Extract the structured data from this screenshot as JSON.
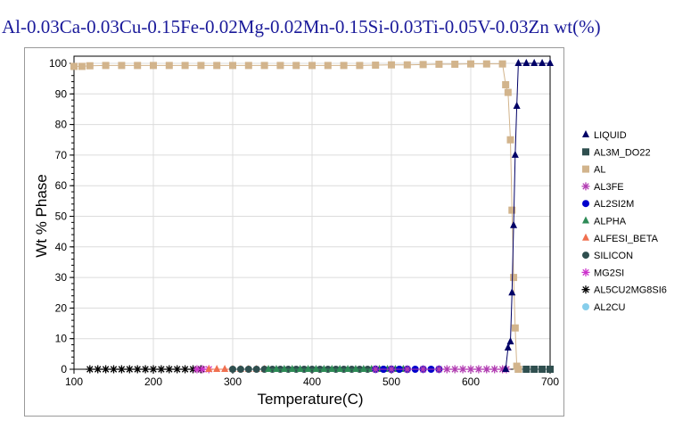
{
  "chart_data": {
    "type": "line",
    "title": "Al-0.03Ca-0.03Cu-0.15Fe-0.02Mg-0.02Mn-0.15Si-0.03Ti-0.05V-0.03Zn wt(%)",
    "xlabel": "Temperature(C)",
    "ylabel": "Wt % Phase",
    "xlim": [
      100,
      700
    ],
    "ylim": [
      0,
      100
    ],
    "xticks": [
      100,
      200,
      300,
      400,
      500,
      600,
      700
    ],
    "yticks": [
      0,
      10,
      20,
      30,
      40,
      50,
      60,
      70,
      80,
      90,
      100
    ],
    "grid": true,
    "legend_position": "right",
    "series": [
      {
        "name": "LIQUID",
        "color": "#000066",
        "marker": "triangle",
        "x": [
          644,
          647,
          650,
          652,
          654,
          656,
          658,
          660,
          670,
          680,
          690,
          700
        ],
        "y": [
          0,
          7,
          9,
          25,
          47,
          70,
          86,
          100,
          100,
          100,
          100,
          100
        ]
      },
      {
        "name": "AL3M_DO22",
        "color": "#2f4f4f",
        "marker": "square",
        "x": [
          660,
          670,
          680,
          690,
          700
        ],
        "y": [
          0,
          0,
          0,
          0,
          0
        ]
      },
      {
        "name": "AL",
        "color": "#d2b48c",
        "marker": "square",
        "x": [
          100,
          110,
          120,
          140,
          160,
          180,
          200,
          220,
          240,
          260,
          280,
          300,
          320,
          340,
          360,
          380,
          400,
          420,
          440,
          460,
          480,
          500,
          520,
          540,
          560,
          580,
          600,
          620,
          640,
          644,
          647,
          650,
          652,
          654,
          656,
          658,
          660
        ],
        "y": [
          99,
          99,
          99.2,
          99.3,
          99.3,
          99.3,
          99.3,
          99.3,
          99.3,
          99.3,
          99.3,
          99.3,
          99.3,
          99.3,
          99.3,
          99.3,
          99.3,
          99.3,
          99.3,
          99.3,
          99.4,
          99.5,
          99.5,
          99.6,
          99.7,
          99.7,
          99.8,
          99.8,
          99.8,
          93,
          90.5,
          75,
          52,
          30,
          13.5,
          1,
          0
        ]
      },
      {
        "name": "AL3FE",
        "color": "#b23cb2",
        "marker": "asterisk",
        "x": [
          480,
          500,
          520,
          540,
          560,
          570,
          580,
          590,
          600,
          610,
          620,
          630,
          640,
          645
        ],
        "y": [
          0,
          0,
          0,
          0,
          0,
          0,
          0,
          0,
          0,
          0,
          0,
          0,
          0,
          0
        ]
      },
      {
        "name": "AL2SI2M",
        "color": "#0000cc",
        "marker": "circle",
        "x": [
          480,
          490,
          500,
          510,
          520,
          530,
          540,
          550,
          560
        ],
        "y": [
          0,
          0,
          0,
          0,
          0,
          0,
          0,
          0,
          0
        ]
      },
      {
        "name": "ALPHA",
        "color": "#2e8b57",
        "marker": "triangle",
        "x": [
          345,
          355,
          365,
          375,
          385,
          395,
          405,
          415,
          425,
          435,
          445,
          455,
          465,
          475,
          485,
          495,
          505,
          515
        ],
        "y": [
          0,
          0,
          0,
          0,
          0,
          0,
          0,
          0,
          0,
          0,
          0,
          0,
          0,
          0,
          0,
          0,
          0,
          0
        ]
      },
      {
        "name": "ALFESI_BETA",
        "color": "#f07050",
        "marker": "triangle",
        "x": [
          270,
          280,
          290,
          300,
          310,
          320,
          330,
          340
        ],
        "y": [
          0,
          0,
          0,
          0,
          0,
          0,
          0,
          0
        ]
      },
      {
        "name": "SILICON",
        "color": "#2f4f4f",
        "marker": "circle",
        "x": [
          300,
          310,
          320,
          330,
          340,
          350,
          360,
          370,
          380,
          390,
          400,
          410,
          420,
          430,
          440,
          450,
          460,
          470,
          480,
          490,
          500,
          510,
          520
        ],
        "y": [
          0,
          0,
          0,
          0,
          0,
          0,
          0,
          0,
          0,
          0,
          0,
          0,
          0,
          0,
          0,
          0,
          0,
          0,
          0,
          0,
          0,
          0,
          0
        ]
      },
      {
        "name": "MG2SI",
        "color": "#cc33cc",
        "marker": "asterisk",
        "x": [
          255,
          262,
          270
        ],
        "y": [
          0,
          0,
          0
        ]
      },
      {
        "name": "AL5CU2MG8SI6",
        "color": "#000000",
        "marker": "asterisk",
        "x": [
          120,
          130,
          140,
          150,
          160,
          170,
          180,
          190,
          200,
          210,
          220,
          230,
          240,
          250,
          260
        ],
        "y": [
          0,
          0,
          0,
          0,
          0,
          0,
          0,
          0,
          0,
          0,
          0,
          0,
          0,
          0,
          0
        ]
      },
      {
        "name": "AL2CU",
        "color": "#87ceeb",
        "marker": "circle",
        "x": [
          100,
          107,
          114,
          121
        ],
        "y": [
          0,
          0,
          0,
          0
        ]
      }
    ]
  }
}
